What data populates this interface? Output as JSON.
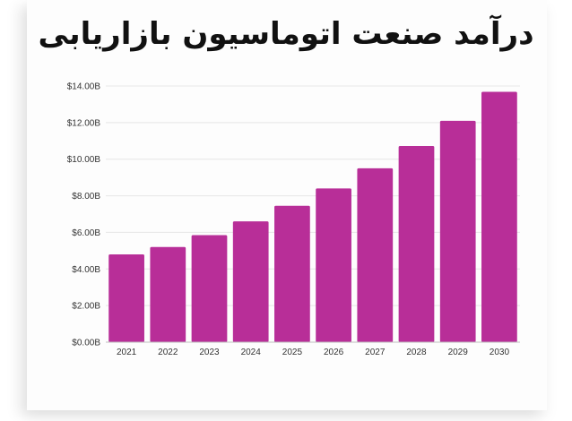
{
  "colors": {
    "bar": "#b82e98",
    "grid": "#e6e6e6",
    "axis": "#bfbfbf",
    "title": "#111111"
  },
  "chart_data": {
    "type": "bar",
    "title": "درآمد صنعت اتوماسیون بازاریابی",
    "xlabel": "",
    "ylabel": "",
    "categories": [
      "2021",
      "2022",
      "2023",
      "2024",
      "2025",
      "2026",
      "2027",
      "2028",
      "2029",
      "2030"
    ],
    "values": [
      4.8,
      5.2,
      5.85,
      6.6,
      7.45,
      8.4,
      9.5,
      10.72,
      12.1,
      13.68
    ],
    "ylim": [
      0,
      14
    ],
    "yticks": [
      0,
      2,
      4,
      6,
      8,
      10,
      12,
      14
    ],
    "ytick_labels": [
      "$0.00B",
      "$2.00B",
      "$4.00B",
      "$6.00B",
      "$8.00B",
      "$10.00B",
      "$12.00B",
      "$14.00B"
    ],
    "grid": true,
    "legend": "none"
  }
}
